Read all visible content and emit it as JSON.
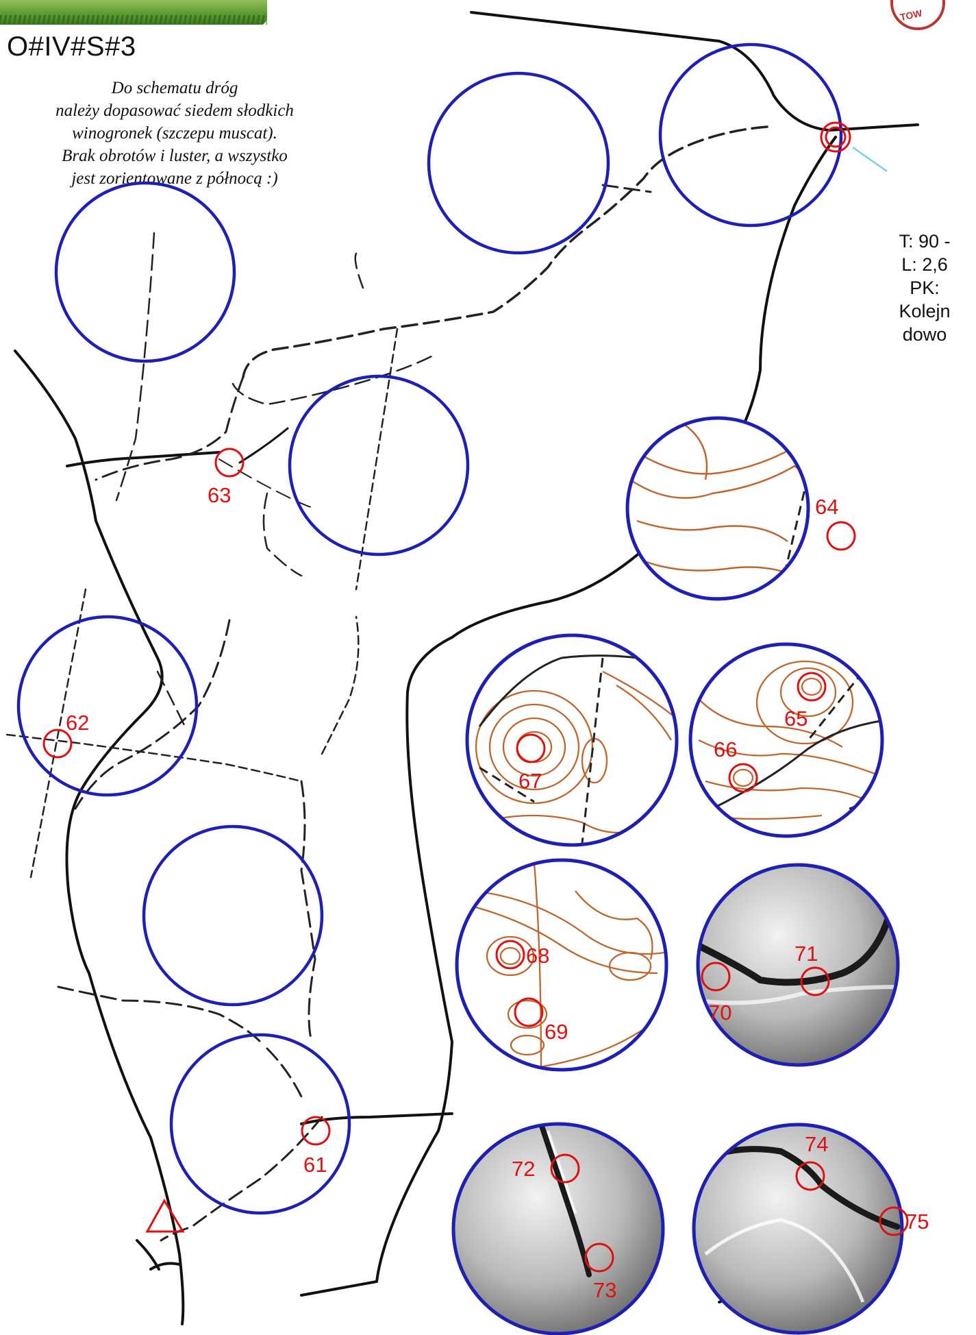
{
  "header": {
    "title": "O#IV#S#3",
    "instructions": [
      "Do schematu dróg",
      "należy dopasować siedem słodkich",
      "winogronek (szczepu muscat).",
      "Brak obrotów i luster, a wszystko",
      "jest zorientowane z północą :)"
    ]
  },
  "side_info": {
    "lines": [
      "T: 90 -",
      "L: 2,6",
      "PK:",
      "Kolejn",
      "dowo"
    ]
  },
  "stamp": {
    "text": "TOW"
  },
  "colors": {
    "circle": "#1f1fb5",
    "control": "#e01010",
    "road": "#111111",
    "contour": "#c0662a"
  },
  "course": {
    "start_symbol": "triangle",
    "controls": [
      {
        "id": "61",
        "label": "61"
      },
      {
        "id": "62",
        "label": "62"
      },
      {
        "id": "63",
        "label": "63"
      },
      {
        "id": "64",
        "label": "64"
      },
      {
        "id": "65",
        "label": "65"
      },
      {
        "id": "66",
        "label": "66"
      },
      {
        "id": "67",
        "label": "67"
      },
      {
        "id": "68",
        "label": "68"
      },
      {
        "id": "69",
        "label": "69"
      },
      {
        "id": "70",
        "label": "70"
      },
      {
        "id": "71",
        "label": "71"
      },
      {
        "id": "72",
        "label": "72"
      },
      {
        "id": "73",
        "label": "73"
      },
      {
        "id": "74",
        "label": "74"
      },
      {
        "id": "75",
        "label": "75"
      }
    ]
  },
  "grape_panels": [
    {
      "kind": "contour",
      "controls": [
        "64"
      ]
    },
    {
      "kind": "contour",
      "controls": [
        "67"
      ]
    },
    {
      "kind": "contour",
      "controls": [
        "65",
        "66"
      ]
    },
    {
      "kind": "contour",
      "controls": [
        "68",
        "69"
      ]
    },
    {
      "kind": "relief",
      "controls": [
        "70",
        "71"
      ]
    },
    {
      "kind": "relief",
      "controls": [
        "72",
        "73"
      ]
    },
    {
      "kind": "relief",
      "controls": [
        "74",
        "75"
      ]
    }
  ]
}
